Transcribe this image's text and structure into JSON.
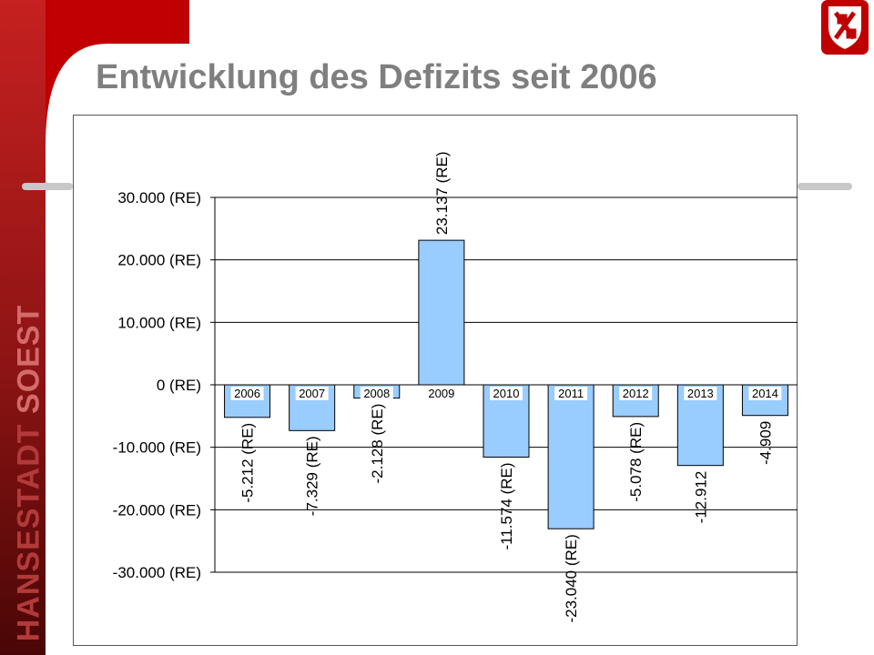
{
  "slide": {
    "title": "Entwicklung des Defizits seit 2006",
    "side_brand_part1": "HANSESTADT",
    "side_brand_part2": "SOEST",
    "colors": {
      "bar_fill": "#99ccff",
      "brand_dark": "#8b1a1a",
      "brand_red": "#c00000",
      "title_gray": "#7f7f7f"
    }
  },
  "chart_data": {
    "type": "bar",
    "title": "",
    "xlabel": "",
    "ylabel": "",
    "categories": [
      "2006",
      "2007",
      "2008",
      "2009",
      "2010",
      "2011",
      "2012",
      "2013",
      "2014"
    ],
    "values": [
      -5212,
      -7329,
      -2128,
      23137,
      -11574,
      -23040,
      -5078,
      -12912,
      -4909
    ],
    "data_labels": [
      "-5.212 (RE)",
      "-7.329 (RE)",
      "-2.128 (RE)",
      "23.137 (RE)",
      "-11.574 (RE)",
      "-23.040 (RE)",
      "-5.078 (RE)",
      "-12.912",
      "-4.909"
    ],
    "ylim": [
      -30000,
      30000
    ],
    "yticks": [
      30000,
      20000,
      10000,
      0,
      -10000,
      -20000,
      -30000
    ],
    "ytick_labels": [
      "30.000 (RE)",
      "20.000 (RE)",
      "10.000 (RE)",
      "0 (RE)",
      "-10.000 (RE)",
      "-20.000 (RE)",
      "-30.000 (RE)"
    ],
    "grid": true,
    "legend": "none"
  }
}
